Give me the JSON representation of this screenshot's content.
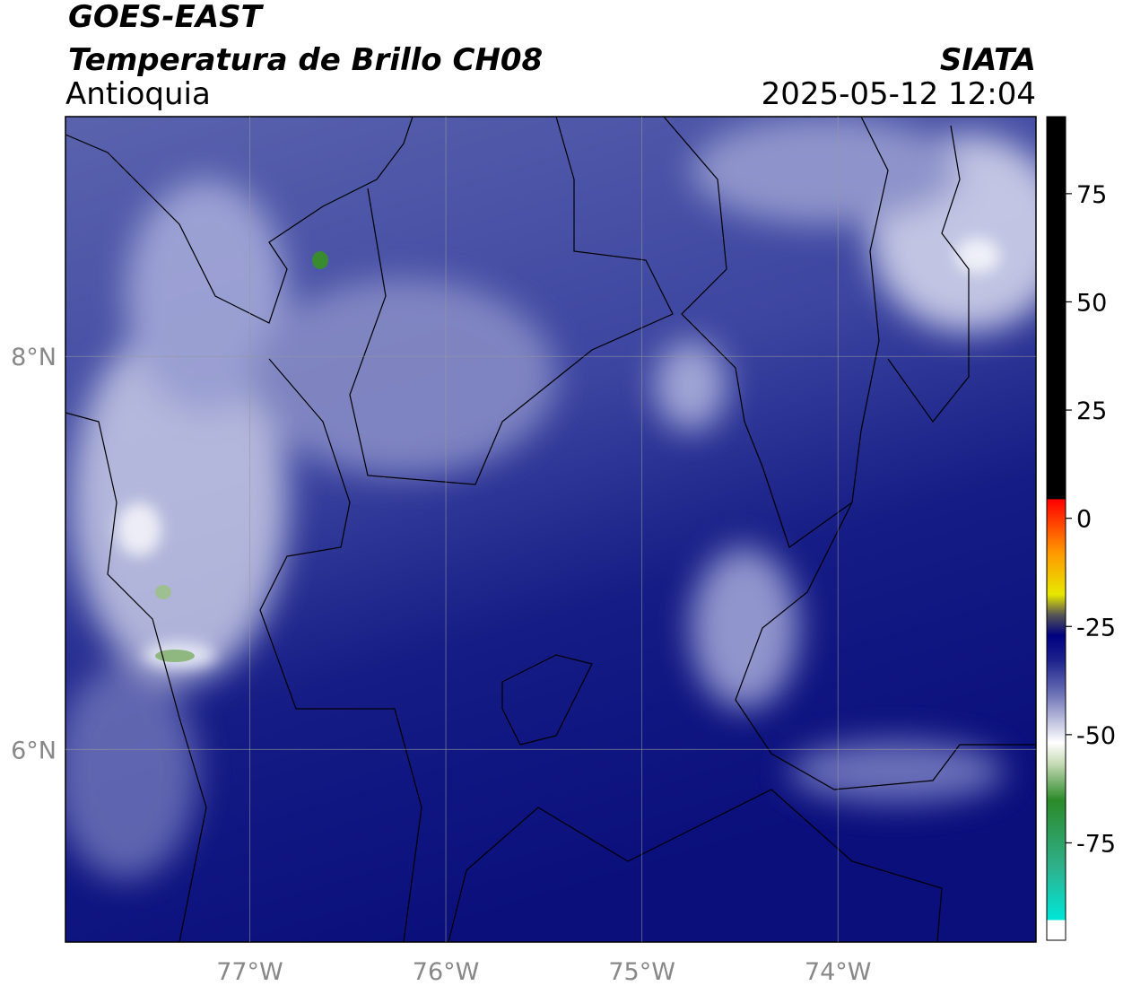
{
  "chart_data": {
    "type": "map",
    "title": "GOES-EAST",
    "subtitle": "Temperatura de Brillo CH08",
    "source": "SIATA",
    "region": "Antioquia",
    "timestamp": "2025-05-12 12:04",
    "xlim": [
      -77.94,
      -72.99
    ],
    "xticks": [
      {
        "value": -77,
        "label": "77°W"
      },
      {
        "value": -76,
        "label": "76°W"
      },
      {
        "value": -75,
        "label": "75°W"
      },
      {
        "value": -74,
        "label": "74°W"
      }
    ],
    "ylim": [
      5.02,
      9.22
    ],
    "yticks": [
      {
        "value": 8,
        "label": "8°N"
      },
      {
        "value": 6,
        "label": "6°N"
      }
    ],
    "grid": true,
    "colorbar": {
      "lim": [
        -97.5,
        92.8
      ],
      "ticks": [
        75,
        50,
        25,
        0,
        -25,
        -50,
        -75
      ]
    }
  }
}
